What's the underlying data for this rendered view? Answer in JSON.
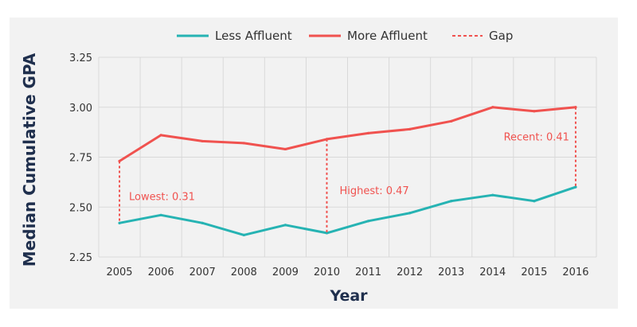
{
  "colors": {
    "less_affluent": "#26b3b3",
    "more_affluent": "#f0524f",
    "gap": "#f0524f",
    "grid": "#d9d9d9",
    "panel": "#f2f2f2",
    "axis_title": "#1f2f4d"
  },
  "chart_data": {
    "type": "line",
    "title": "",
    "xlabel": "Year",
    "ylabel": "Median Cumulative GPA",
    "x": [
      "2005",
      "2006",
      "2007",
      "2008",
      "2009",
      "2010",
      "2011",
      "2012",
      "2013",
      "2014",
      "2015",
      "2016"
    ],
    "ylim": [
      2.25,
      3.25
    ],
    "yticks": [
      "2.25",
      "2.50",
      "2.75",
      "3.00",
      "3.25"
    ],
    "ytick_values": [
      2.25,
      2.5,
      2.75,
      3.0,
      3.25
    ],
    "grid": true,
    "legend_position": "top",
    "series": [
      {
        "name": "Less Affluent",
        "color": "#26b3b3",
        "values": [
          2.42,
          2.46,
          2.42,
          2.36,
          2.41,
          2.37,
          2.43,
          2.47,
          2.53,
          2.56,
          2.53,
          2.6
        ]
      },
      {
        "name": "More Affluent",
        "color": "#f0524f",
        "values": [
          2.73,
          2.86,
          2.83,
          2.82,
          2.79,
          2.84,
          2.87,
          2.89,
          2.93,
          3.0,
          2.98,
          3.0
        ]
      }
    ],
    "gap_legend": "Gap",
    "gaps": [
      {
        "year": "2005",
        "label": "Lowest: 0.31"
      },
      {
        "year": "2010",
        "label": "Highest: 0.47"
      },
      {
        "year": "2016",
        "label": "Recent: 0.41"
      }
    ]
  }
}
